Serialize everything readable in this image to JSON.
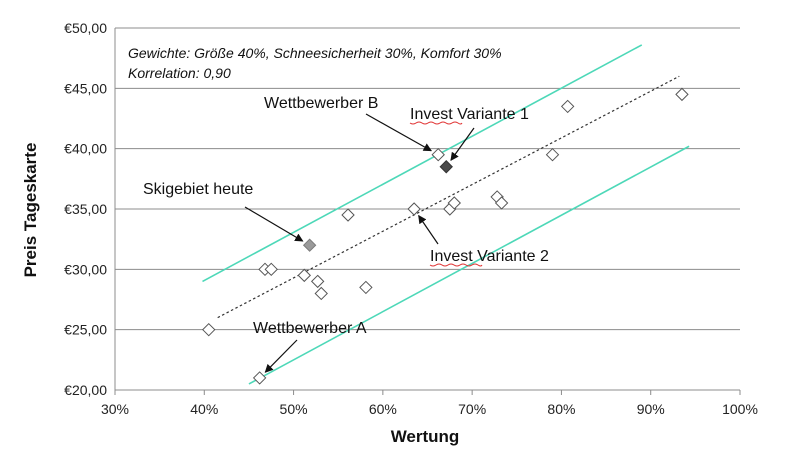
{
  "chart_data": {
    "type": "scatter",
    "title": "",
    "xlabel": "Wertung",
    "ylabel": "Preis Tageskarte",
    "xlim": [
      30,
      100
    ],
    "ylim": [
      20,
      50
    ],
    "x_ticks": [
      "30%",
      "40%",
      "50%",
      "60%",
      "70%",
      "80%",
      "90%",
      "100%"
    ],
    "y_ticks": [
      "€20,00",
      "€25,00",
      "€30,00",
      "€35,00",
      "€40,00",
      "€45,00",
      "€50,00"
    ],
    "grid": "horizontal",
    "notes": [
      "Gewichte: Größe 40%, Schneesicherheit 30%, Komfort 30%",
      "Korrelation: 0,90"
    ],
    "points": [
      {
        "x": 40.5,
        "y": 25.0,
        "style": "open"
      },
      {
        "x": 46.2,
        "y": 21.0,
        "style": "open"
      },
      {
        "x": 46.8,
        "y": 30.0,
        "style": "open"
      },
      {
        "x": 47.5,
        "y": 30.0,
        "style": "open"
      },
      {
        "x": 51.2,
        "y": 29.5,
        "style": "open"
      },
      {
        "x": 52.7,
        "y": 29.0,
        "style": "open"
      },
      {
        "x": 53.1,
        "y": 28.0,
        "style": "open"
      },
      {
        "x": 56.1,
        "y": 34.5,
        "style": "open"
      },
      {
        "x": 58.1,
        "y": 28.5,
        "style": "open"
      },
      {
        "x": 63.5,
        "y": 35.0,
        "style": "open"
      },
      {
        "x": 66.2,
        "y": 39.5,
        "style": "open"
      },
      {
        "x": 67.5,
        "y": 35.0,
        "style": "open"
      },
      {
        "x": 68.0,
        "y": 35.5,
        "style": "open"
      },
      {
        "x": 72.8,
        "y": 36.0,
        "style": "open"
      },
      {
        "x": 73.3,
        "y": 35.5,
        "style": "open"
      },
      {
        "x": 79.0,
        "y": 39.5,
        "style": "open"
      },
      {
        "x": 80.7,
        "y": 43.5,
        "style": "open"
      },
      {
        "x": 93.5,
        "y": 44.5,
        "style": "open"
      },
      {
        "x": 51.8,
        "y": 32.0,
        "style": "gray"
      },
      {
        "x": 67.1,
        "y": 38.5,
        "style": "dark"
      }
    ],
    "trendline": {
      "x1": 41.5,
      "y1": 26.0,
      "x2": 93.2,
      "y2": 46.0
    },
    "band_upper": {
      "x1": 39.8,
      "y1": 29.0,
      "x2": 89.0,
      "y2": 48.6
    },
    "band_lower": {
      "x1": 45.0,
      "y1": 20.5,
      "x2": 94.3,
      "y2": 40.2
    },
    "annotations": [
      {
        "label": "Wettbewerber B",
        "point_x": 66.2,
        "point_y": 39.5
      },
      {
        "label": "Invest Variante 1",
        "point_x": 67.1,
        "point_y": 38.5
      },
      {
        "label": "Skigebiet heute",
        "point_x": 51.8,
        "point_y": 32.0
      },
      {
        "label": "Invest Variante 2",
        "point_x": 63.5,
        "point_y": 35.0
      },
      {
        "label": "Wettbewerber A",
        "point_x": 46.2,
        "point_y": 21.0
      }
    ],
    "colors": {
      "open_marker_stroke": "#555555",
      "gray_marker": "#9a9a9a",
      "dark_marker": "#4a4a4a",
      "band": "#4dd8b8",
      "trend": "#333333",
      "grid": "#8c8c8c"
    }
  }
}
